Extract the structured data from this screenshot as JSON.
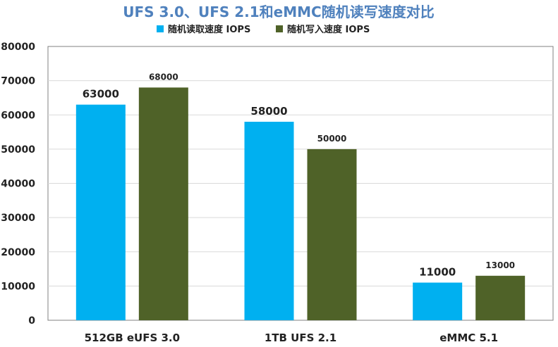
{
  "chart_data": {
    "type": "bar",
    "title": "UFS 3.0、UFS 2.1和eMMC随机读写速度对比",
    "categories": [
      "512GB eUFS 3.0",
      "1TB UFS 2.1",
      "eMMC 5.1"
    ],
    "series": [
      {
        "name": "随机读取速度 IOPS",
        "values": [
          63000,
          58000,
          11000
        ],
        "color": "#00b0f0"
      },
      {
        "name": "随机写入速度 IOPS",
        "values": [
          68000,
          50000,
          13000
        ],
        "color": "#4f6228"
      }
    ],
    "ylim": [
      0,
      80000
    ],
    "yticks": [
      0,
      10000,
      20000,
      30000,
      40000,
      50000,
      60000,
      70000,
      80000
    ],
    "grid": true,
    "legend": "top",
    "title_color": "#4f81bd",
    "xlabel": "",
    "ylabel": ""
  }
}
